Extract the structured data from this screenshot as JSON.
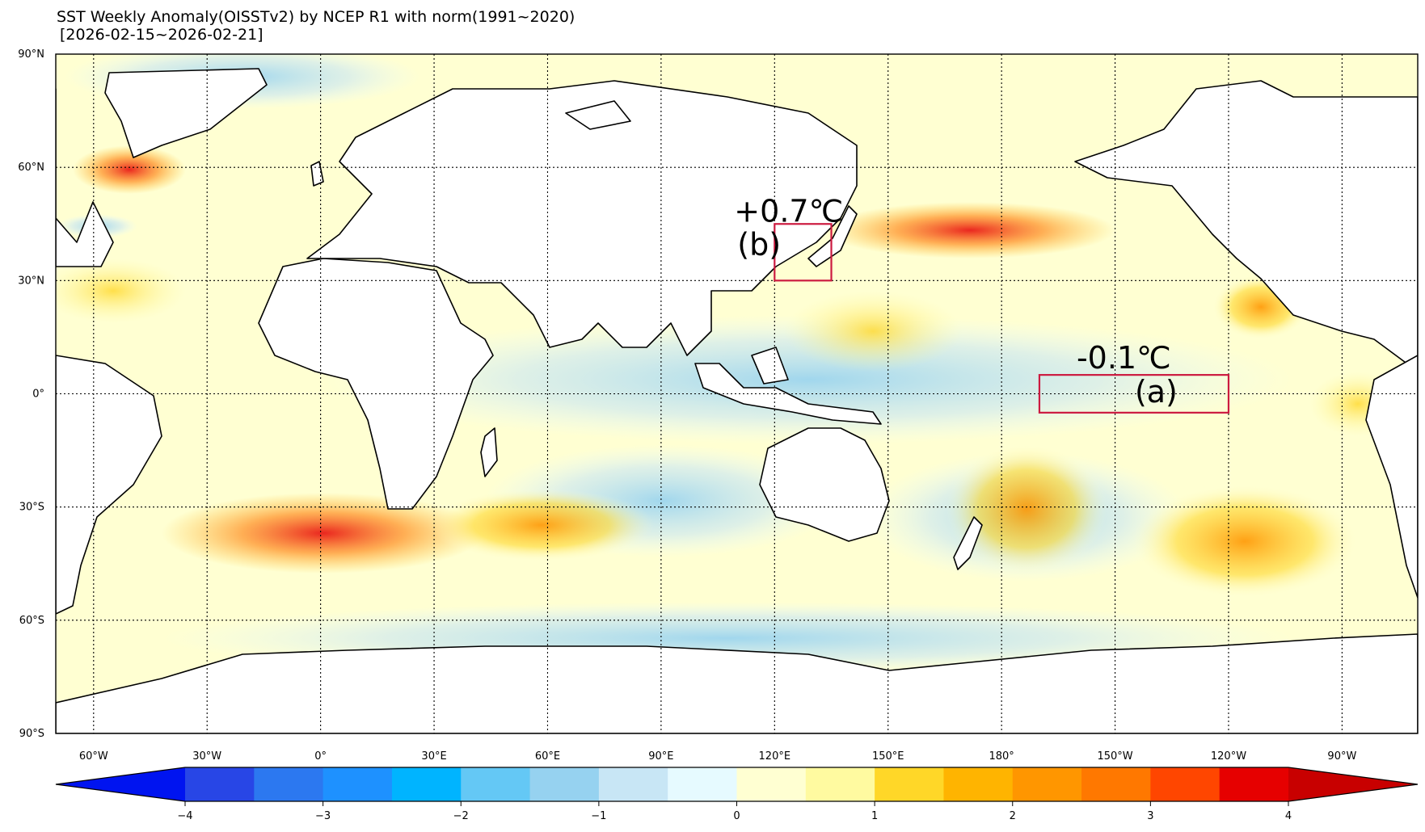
{
  "title": {
    "line1": "SST Weekly Anomaly(OISSTv2) by NCEP R1 with norm(1991~2020)",
    "line2": "[2026-02-15~2026-02-21]"
  },
  "lat_labels": [
    "90°N",
    "60°N",
    "30°N",
    "0°",
    "30°S",
    "60°S",
    "90°S"
  ],
  "lon_labels": [
    "60°W",
    "30°W",
    "0°",
    "30°E",
    "60°E",
    "90°E",
    "120°E",
    "150°E",
    "180°",
    "150°W",
    "120°W",
    "90°W"
  ],
  "regions": [
    {
      "id": "a",
      "label": "(a)",
      "value": "-0.1℃",
      "lon_range": [
        -170,
        -120
      ],
      "lat_range": [
        -5,
        5
      ]
    },
    {
      "id": "b",
      "label": "(b)",
      "value": "+0.7℃",
      "lon_range": [
        120,
        135
      ],
      "lat_range": [
        30,
        45
      ]
    }
  ],
  "colorbar": {
    "ticks": [
      "−4",
      "−3",
      "−2",
      "−1",
      "0",
      "1",
      "2",
      "3",
      "4"
    ],
    "levels": [
      -4,
      -3.5,
      -3,
      -2.5,
      -2,
      -1.5,
      -1,
      -0.5,
      0,
      0.5,
      1,
      1.5,
      2,
      2.5,
      3,
      3.5,
      4
    ],
    "colors": [
      "#0014f0",
      "#2846e6",
      "#2c78f0",
      "#1e91ff",
      "#00b4ff",
      "#64c8f5",
      "#96d2f0",
      "#c8e6f5",
      "#e6faff",
      "#ffffd2",
      "#fffaa0",
      "#ffd728",
      "#ffb400",
      "#ff9600",
      "#ff7800",
      "#ff4600",
      "#e60000",
      "#c80000"
    ]
  },
  "legend": {
    "unit": "℃"
  }
}
